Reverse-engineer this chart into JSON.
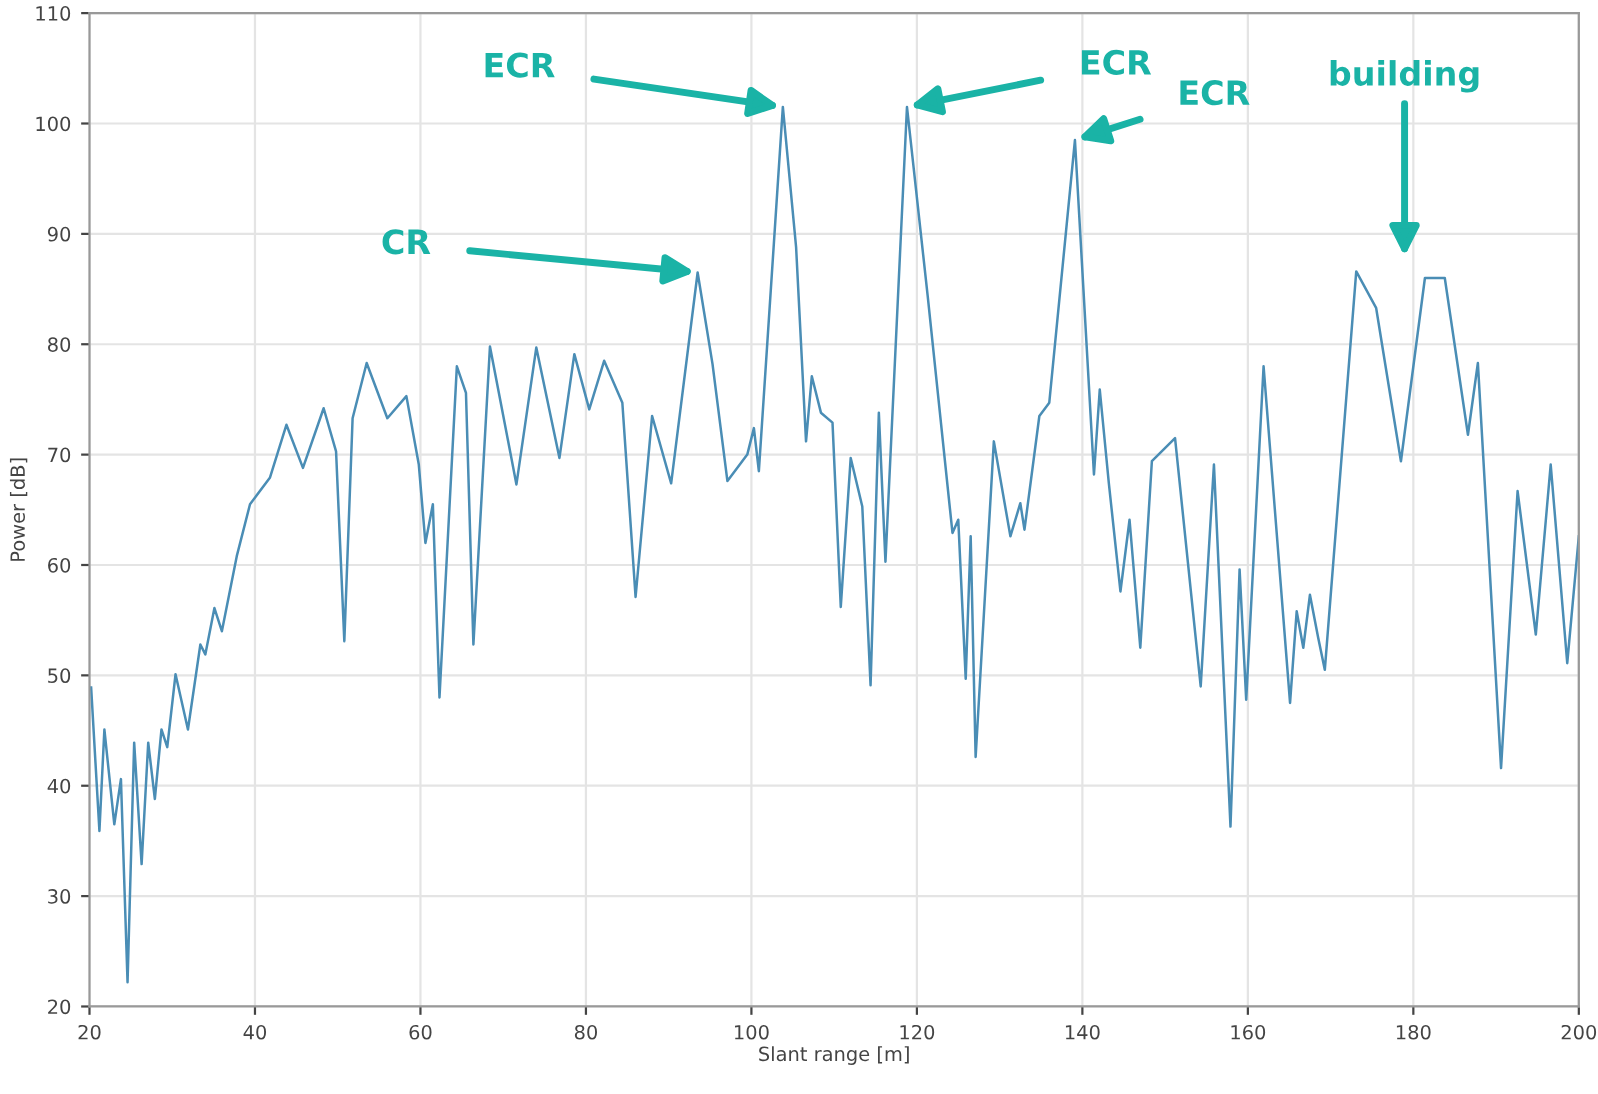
{
  "chart_data": {
    "type": "line",
    "xlabel": "Slant range [m]",
    "ylabel": "Power [dB]",
    "xlim": [
      20,
      200
    ],
    "ylim": [
      20,
      110
    ],
    "xticks": [
      20,
      40,
      60,
      80,
      100,
      120,
      140,
      160,
      180,
      200
    ],
    "yticks": [
      20,
      30,
      40,
      50,
      60,
      70,
      80,
      90,
      100,
      110
    ],
    "grid": true,
    "marker": "none",
    "line_style": "solid",
    "series": [
      {
        "color": "#4a8db5",
        "x": [
          20.2,
          21.2,
          21.8,
          23.0,
          23.8,
          24.6,
          25.4,
          26.3,
          27.1,
          27.9,
          28.7,
          29.4,
          30.4,
          31.9,
          33.4,
          34.0,
          35.1,
          36.0,
          37.8,
          39.4,
          41.8,
          43.8,
          45.8,
          48.3,
          49.8,
          50.8,
          51.8,
          53.5,
          56.0,
          58.3,
          59.8,
          60.6,
          61.5,
          62.3,
          64.4,
          65.5,
          66.4,
          68.4,
          71.6,
          74.0,
          76.8,
          78.6,
          80.4,
          82.2,
          84.4,
          86.0,
          88.0,
          90.3,
          93.5,
          95.3,
          97.1,
          99.5,
          100.3,
          100.9,
          103.8,
          105.4,
          106.6,
          107.3,
          108.4,
          109.8,
          110.8,
          112.0,
          113.4,
          114.4,
          115.4,
          116.2,
          118.8,
          121.3,
          124.3,
          125.0,
          125.9,
          126.5,
          127.1,
          129.3,
          131.3,
          132.5,
          133.0,
          134.8,
          136.0,
          139.1,
          141.4,
          142.1,
          143.2,
          144.6,
          145.7,
          147.0,
          148.4,
          151.2,
          154.3,
          155.9,
          157.9,
          159.0,
          159.8,
          161.9,
          165.1,
          165.9,
          166.7,
          167.5,
          168.5,
          169.3,
          173.1,
          175.5,
          178.5,
          181.4,
          183.8,
          186.6,
          187.8,
          190.6,
          192.6,
          194.8,
          196.6,
          198.6,
          200
        ],
        "values": [
          48.9,
          35.9,
          45.1,
          36.5,
          40.6,
          22.2,
          43.9,
          32.9,
          43.9,
          38.8,
          45.1,
          43.5,
          50.1,
          45.1,
          52.8,
          51.9,
          56.1,
          54.0,
          60.8,
          65.5,
          67.9,
          72.7,
          68.8,
          74.2,
          70.3,
          53.1,
          73.3,
          78.3,
          73.3,
          75.3,
          69.1,
          62.0,
          65.5,
          48.0,
          78.0,
          75.6,
          52.8,
          79.8,
          67.3,
          79.7,
          69.7,
          79.1,
          74.1,
          78.5,
          74.7,
          57.1,
          73.5,
          67.4,
          86.5,
          78.2,
          67.6,
          70.0,
          72.4,
          68.5,
          101.5,
          88.8,
          71.2,
          77.1,
          73.8,
          72.9,
          56.2,
          69.7,
          65.3,
          49.1,
          73.8,
          60.3,
          101.5,
          84.4,
          62.9,
          64.1,
          49.7,
          62.6,
          42.6,
          71.2,
          62.6,
          65.6,
          63.2,
          73.5,
          74.7,
          98.5,
          68.2,
          75.9,
          67.4,
          57.6,
          64.1,
          52.5,
          69.4,
          71.5,
          49.0,
          69.1,
          36.3,
          59.6,
          47.8,
          78.0,
          47.5,
          55.8,
          52.5,
          57.3,
          53.4,
          50.5,
          86.6,
          83.3,
          69.4,
          86.0,
          86.0,
          71.8,
          78.3,
          41.6,
          66.7,
          53.7,
          69.1,
          51.1,
          62.6
        ]
      }
    ],
    "annotations": [
      {
        "text": "CR",
        "x": 93.5,
        "y": 86.5
      },
      {
        "text": "ECR",
        "x": 103.8,
        "y": 101.5
      },
      {
        "text": "ECR",
        "x": 118.8,
        "y": 101.5
      },
      {
        "text": "ECR",
        "x": 139.1,
        "y": 98.5
      },
      "building"
    ]
  }
}
